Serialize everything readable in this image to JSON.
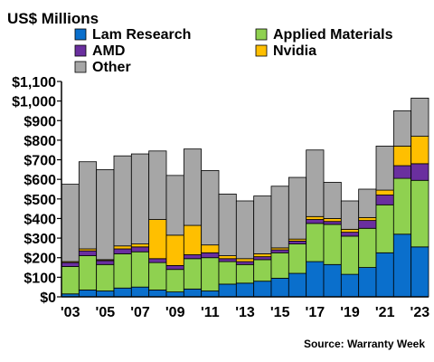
{
  "chart_data": {
    "type": "bar",
    "stacked": true,
    "ylabel": "US$ Millions",
    "ylim": [
      0,
      1100
    ],
    "y_ticks": [
      0,
      100,
      200,
      300,
      400,
      500,
      600,
      700,
      800,
      900,
      1000,
      1100
    ],
    "y_tick_labels": [
      "$0",
      "$100",
      "$200",
      "$300",
      "$400",
      "$500",
      "$600",
      "$700",
      "$800",
      "$900",
      "$1,000",
      "$1,100"
    ],
    "grid": false,
    "legend_placement": "top",
    "categories": [
      "2003",
      "2004",
      "2005",
      "2006",
      "2007",
      "2008",
      "2009",
      "2010",
      "2011",
      "2012",
      "2013",
      "2014",
      "2015",
      "2016",
      "2017",
      "2018",
      "2019",
      "2020",
      "2021",
      "2022",
      "2023"
    ],
    "x_tick_labels": [
      "'03",
      "",
      "'05",
      "",
      "'07",
      "",
      "'09",
      "",
      "'11",
      "",
      "'13",
      "",
      "'15",
      "",
      "'17",
      "",
      "'19",
      "",
      "'21",
      "",
      "'23"
    ],
    "series": [
      {
        "name": "Lam Research",
        "color": "#0a6fcc",
        "values": [
          15,
          35,
          30,
          45,
          50,
          35,
          25,
          40,
          30,
          65,
          70,
          80,
          95,
          120,
          180,
          165,
          115,
          150,
          225,
          320,
          255
        ]
      },
      {
        "name": "Applied Materials",
        "color": "#8fd150",
        "values": [
          140,
          175,
          135,
          175,
          180,
          140,
          115,
          155,
          170,
          115,
          95,
          110,
          130,
          150,
          195,
          205,
          195,
          200,
          245,
          285,
          340
        ]
      },
      {
        "name": "AMD",
        "color": "#6a2f9f",
        "values": [
          20,
          25,
          20,
          25,
          25,
          20,
          20,
          20,
          25,
          15,
          15,
          15,
          15,
          15,
          20,
          15,
          20,
          40,
          50,
          65,
          85
        ]
      },
      {
        "name": "Nvidia",
        "color": "#ffbf00",
        "values": [
          5,
          10,
          5,
          15,
          15,
          200,
          155,
          150,
          40,
          15,
          15,
          15,
          10,
          10,
          15,
          15,
          15,
          15,
          25,
          100,
          140
        ]
      },
      {
        "name": "Other",
        "color": "#a6a6a6",
        "values": [
          395,
          445,
          460,
          460,
          460,
          350,
          305,
          390,
          380,
          315,
          295,
          295,
          315,
          315,
          340,
          185,
          145,
          145,
          225,
          180,
          195
        ]
      }
    ],
    "source": "Source: Warranty Week"
  }
}
